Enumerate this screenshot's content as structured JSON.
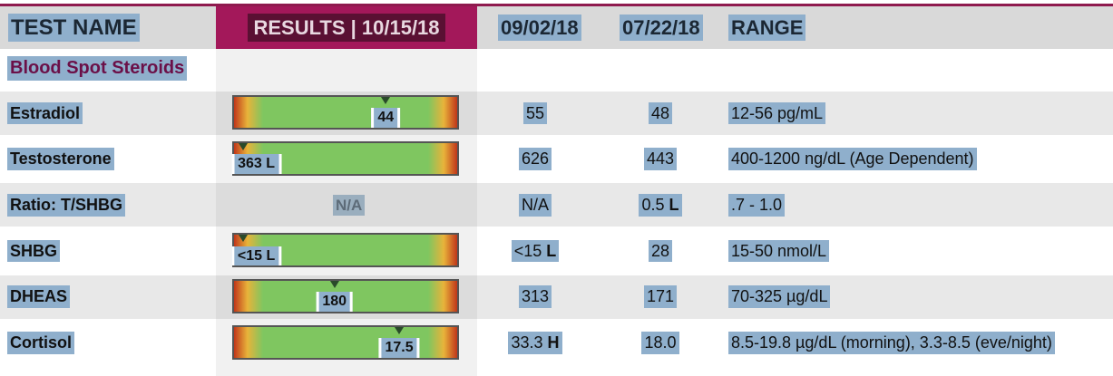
{
  "header": {
    "test_name": "TEST NAME",
    "results": "RESULTS | 10/15/18",
    "date1": "09/02/18",
    "date2": "07/22/18",
    "range": "RANGE"
  },
  "section_title": "Blood Spot Steroids",
  "rows": [
    {
      "name": "Estradiol",
      "result": "44",
      "result_flag": "",
      "level": 0.68,
      "prev1": "55",
      "prev1_flag": "",
      "prev2": "48",
      "prev2_flag": "",
      "range": "12-56 pg/mL"
    },
    {
      "name": "Testosterone",
      "result": "363 L",
      "result_flag": "L",
      "level": 0.04,
      "prev1": "626",
      "prev1_flag": "",
      "prev2": "443",
      "prev2_flag": "",
      "range": "400-1200 ng/dL (Age Dependent)"
    },
    {
      "name": "Ratio: T/SHBG",
      "result": "N/A",
      "result_flag": "",
      "level": null,
      "prev1": "N/A",
      "prev1_flag": "",
      "prev2": "0.5",
      "prev2_flag": "L",
      "range": ".7 - 1.0"
    },
    {
      "name": "SHBG",
      "result": "<15 L",
      "result_flag": "L",
      "level": 0.04,
      "prev1": "<15",
      "prev1_flag": "L",
      "prev2": "28",
      "prev2_flag": "",
      "range": "15-50 nmol/L"
    },
    {
      "name": "DHEAS",
      "result": "180",
      "result_flag": "",
      "level": 0.45,
      "prev1": "313",
      "prev1_flag": "",
      "prev2": "171",
      "prev2_flag": "",
      "range": "70-325 µg/dL"
    },
    {
      "name": "Cortisol",
      "result": "17.5",
      "result_flag": "",
      "level": 0.74,
      "prev1": "33.3",
      "prev1_flag": "H",
      "prev2": "18.0",
      "prev2_flag": "",
      "range": "8.5-19.8 µg/dL (morning), 3.3-8.5 (eve/night)"
    }
  ],
  "colors": {
    "accent": "#a3185a",
    "header_bg": "#d9d9d9",
    "highlight": "#8fafcc",
    "section_text": "#6b1048"
  }
}
